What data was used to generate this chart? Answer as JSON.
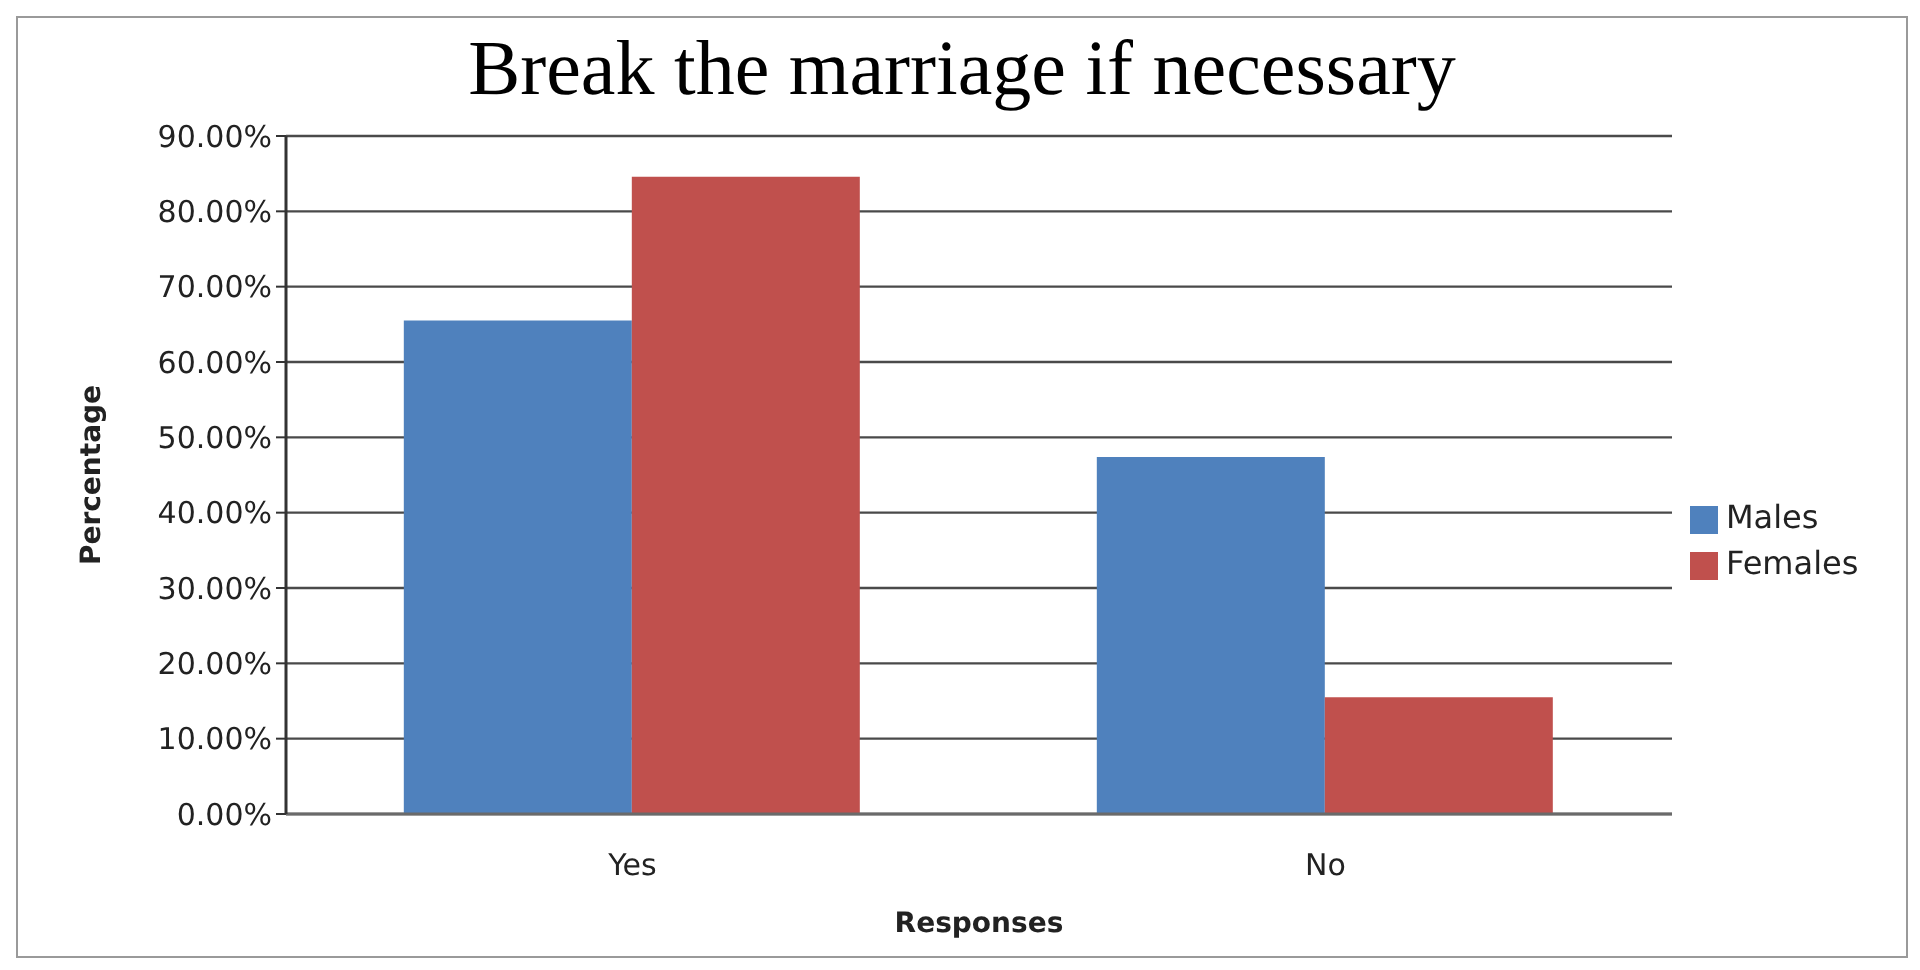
{
  "chart_data": {
    "type": "bar",
    "title": "Break the marriage if necessary",
    "xlabel": "Responses",
    "ylabel": "Percentage",
    "categories": [
      "Yes",
      "No"
    ],
    "series": [
      {
        "name": "Males",
        "color": "#4f81bd",
        "values": [
          65.5,
          47.4
        ]
      },
      {
        "name": "Females",
        "color": "#c0504d",
        "values": [
          84.6,
          15.5
        ]
      }
    ],
    "ylim": [
      0,
      90
    ],
    "yticks": [
      {
        "value": 0,
        "label": "0.00%"
      },
      {
        "value": 10,
        "label": "10.00%"
      },
      {
        "value": 20,
        "label": "20.00%"
      },
      {
        "value": 30,
        "label": "30.00%"
      },
      {
        "value": 40,
        "label": "40.00%"
      },
      {
        "value": 50,
        "label": "50.00%"
      },
      {
        "value": 60,
        "label": "60.00%"
      },
      {
        "value": 70,
        "label": "70.00%"
      },
      {
        "value": 80,
        "label": "80.00%"
      },
      {
        "value": 90,
        "label": "90.00%"
      }
    ],
    "grid": "y",
    "legend": "right"
  }
}
